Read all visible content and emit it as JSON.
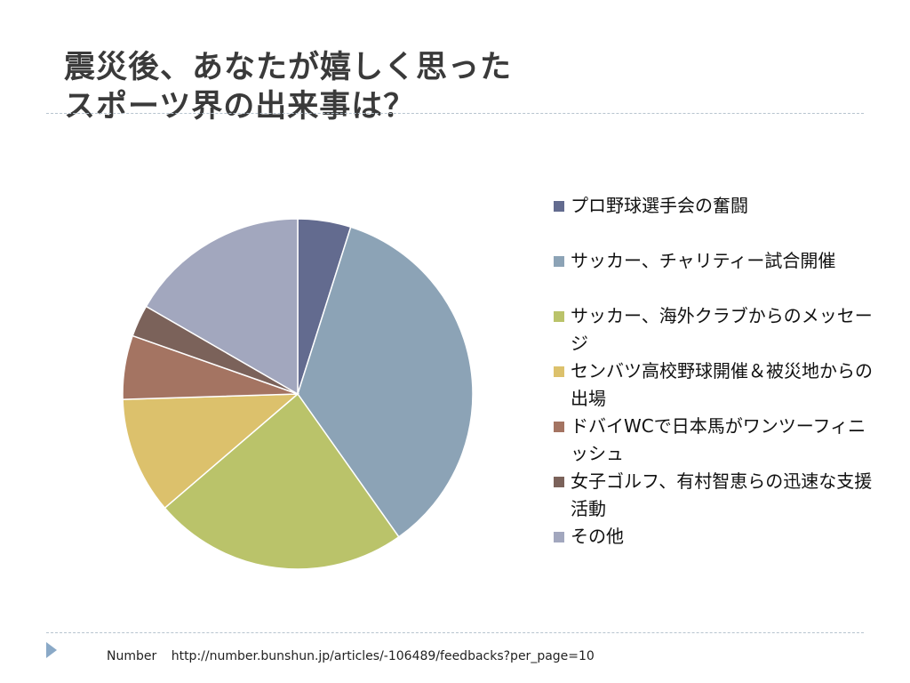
{
  "title": {
    "line1": "震災後、あなたが嬉しく思った",
    "line2": "スポーツ界の出来事は？"
  },
  "source": {
    "name": "Number",
    "url": "http://number.bunshun.jp/articles/-106489/feedbacks?per_page=10"
  },
  "chart_data": {
    "type": "pie",
    "title": "",
    "legend_position": "right",
    "start_angle_deg": 0,
    "direction": "clockwise",
    "slices": [
      {
        "label": "プロ野球選手会の奮闘",
        "value": 5,
        "color": "#636b8f"
      },
      {
        "label": "サッカー、チャリティー試合開催",
        "value": 36,
        "color": "#8ca3b6"
      },
      {
        "label": "サッカー、海外クラブからのメッセージ",
        "value": 24,
        "color": "#bac36a"
      },
      {
        "label": "センバツ高校野球開催＆被災地からの出場",
        "value": 11,
        "color": "#dcc16c"
      },
      {
        "label": "ドバイWCで日本馬がワンツーフィニッシュ",
        "value": 6,
        "color": "#a47462"
      },
      {
        "label": "女子ゴルフ、有村智恵らの迅速な支援活動",
        "value": 3,
        "color": "#7b625a"
      },
      {
        "label": "その他",
        "value": 17,
        "color": "#a2a7be"
      }
    ]
  }
}
